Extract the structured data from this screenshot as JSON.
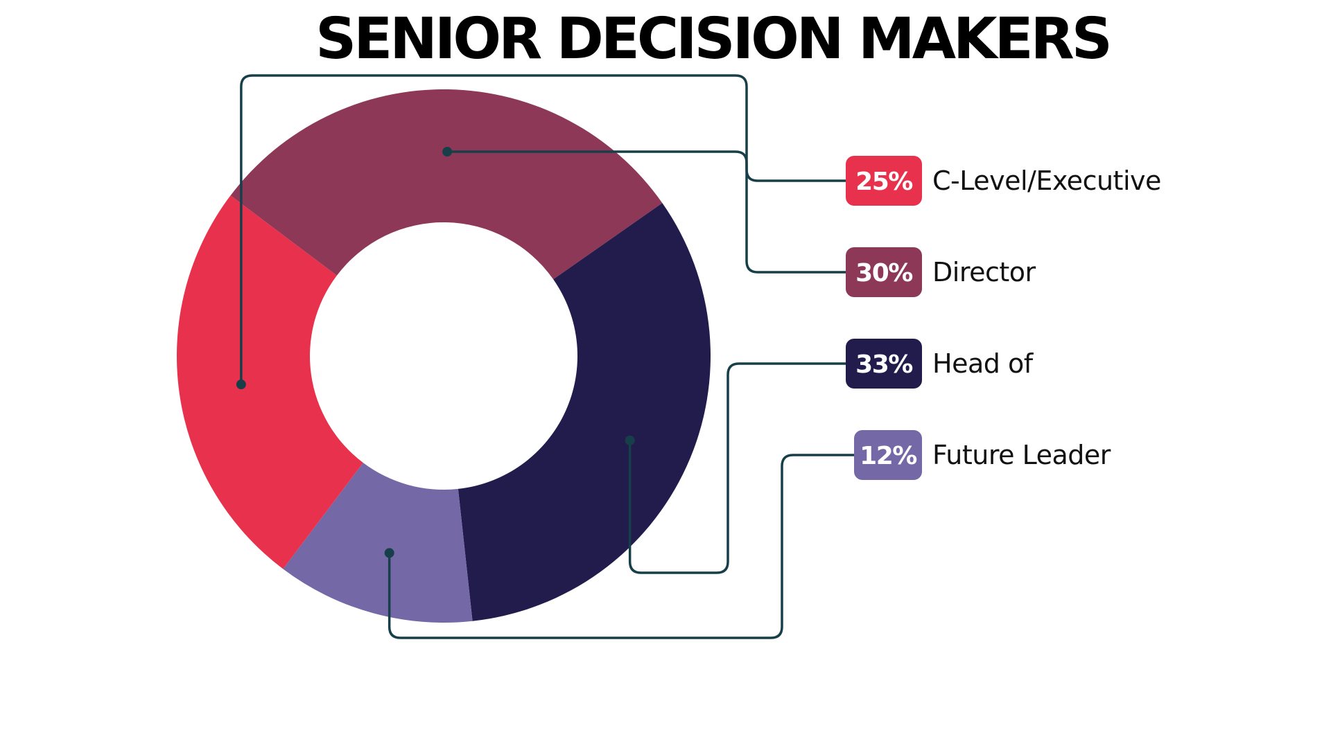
{
  "chart_data": {
    "type": "pie",
    "title": "SENIOR DECISION MAKERS",
    "categories": [
      "C-Level/Executive",
      "Director",
      "Head of",
      "Future Leader"
    ],
    "values": [
      25,
      30,
      33,
      12
    ],
    "value_labels": [
      "25%",
      "30%",
      "33%",
      "12%"
    ],
    "colors": [
      "#e8314c",
      "#8e3857",
      "#221c4d",
      "#7469a6"
    ],
    "style": "donut",
    "legend": "right"
  }
}
